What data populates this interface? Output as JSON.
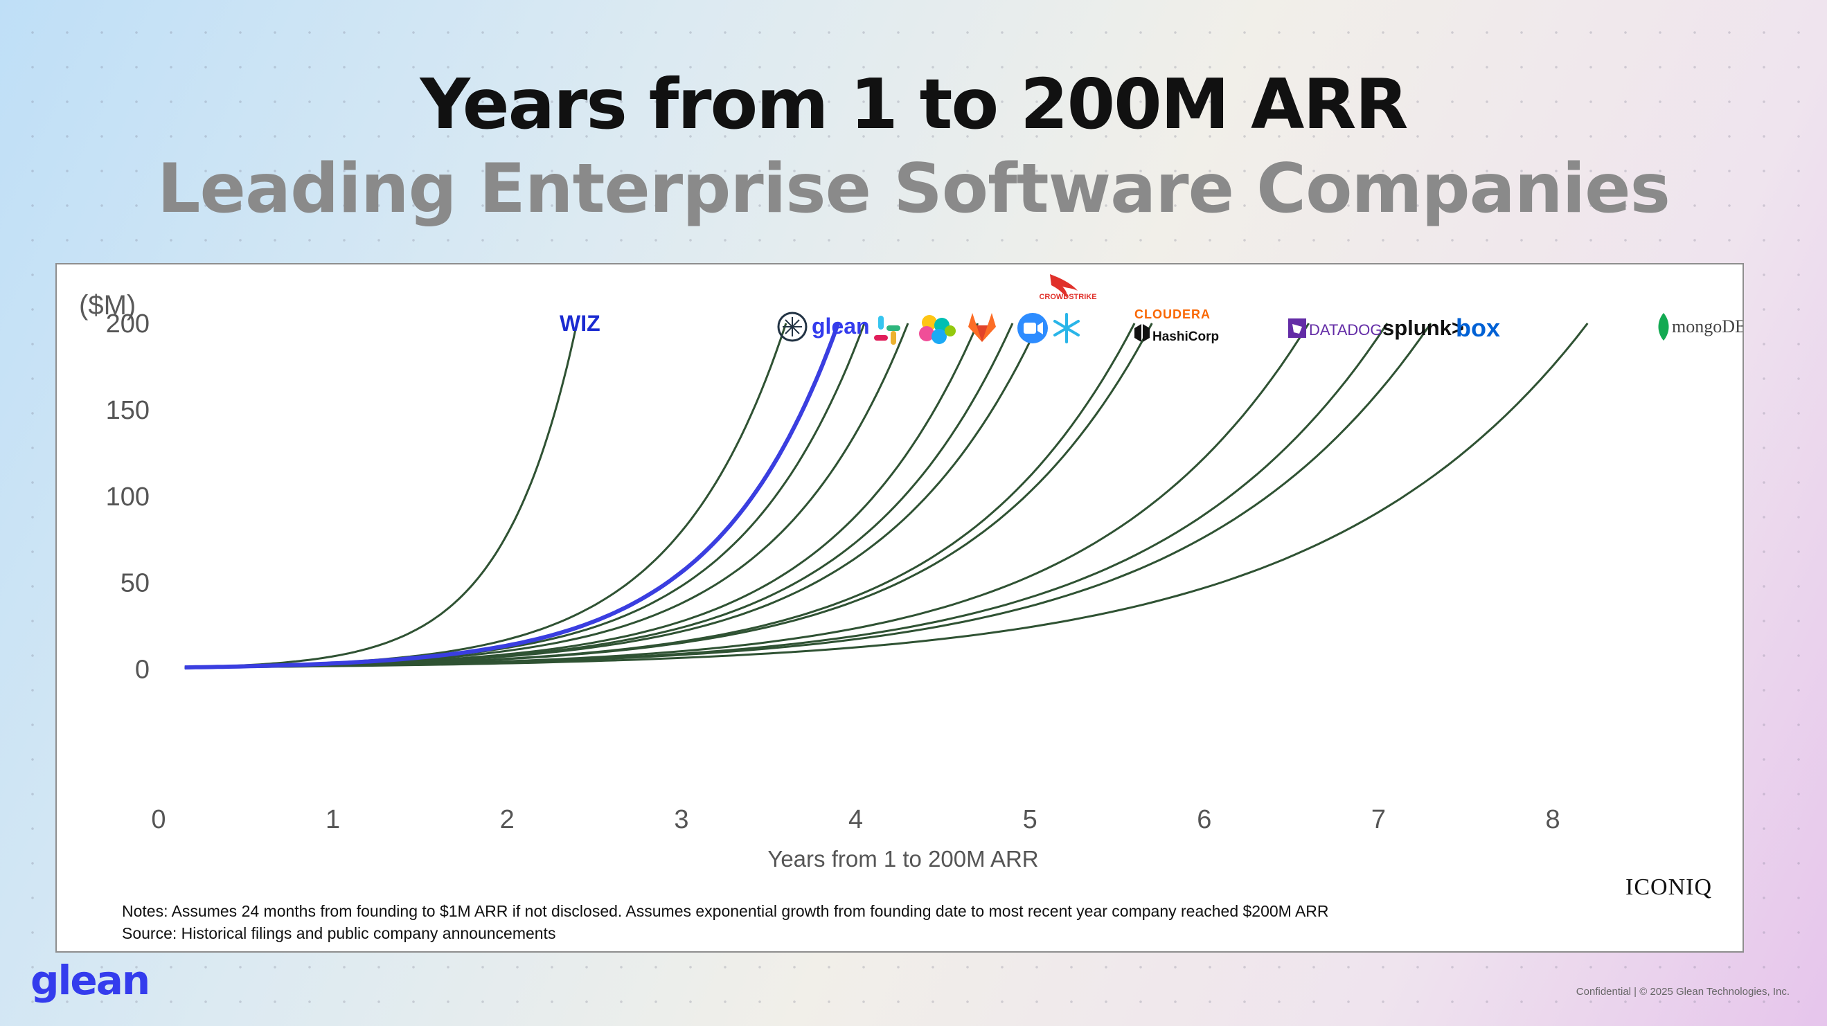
{
  "slide": {
    "title": "Years from 1 to 200M ARR",
    "subtitle": "Leading Enterprise Software Companies",
    "footer_logo": "glean",
    "footer_copyright": "Confidential | © 2025 Glean Technologies, Inc."
  },
  "chart_data": {
    "type": "line",
    "unit_label": "($M)",
    "xlabel": "Years from 1 to 200M ARR",
    "ylabel": "",
    "xlim": [
      0,
      8.6
    ],
    "ylim": [
      -35,
      210
    ],
    "xticks": [
      "0",
      "1",
      "2",
      "3",
      "4",
      "5",
      "6",
      "7",
      "8"
    ],
    "yticks": [
      "200",
      "150",
      "100",
      "50",
      "0"
    ],
    "grid": false,
    "start_year": 0.15,
    "series": [
      {
        "name": "WIZ",
        "end_year": 2.4,
        "highlight": false
      },
      {
        "name": "glean",
        "end_year": 3.9,
        "highlight": true
      },
      {
        "name": "",
        "end_year": 3.6,
        "highlight": false
      },
      {
        "name": "",
        "end_year": 4.05,
        "highlight": false
      },
      {
        "name": "",
        "end_year": 4.3,
        "highlight": false
      },
      {
        "name": "",
        "end_year": 4.7,
        "highlight": false
      },
      {
        "name": "",
        "end_year": 4.9,
        "highlight": false
      },
      {
        "name": "CROWDSTRIKE",
        "end_year": 5.05,
        "highlight": false
      },
      {
        "name": "CLOUDERA",
        "end_year": 5.6,
        "highlight": false
      },
      {
        "name": "HashiCorp",
        "end_year": 5.7,
        "highlight": false
      },
      {
        "name": "DATADOG",
        "end_year": 6.6,
        "highlight": false
      },
      {
        "name": "splunk>",
        "end_year": 7.05,
        "highlight": false
      },
      {
        "name": "box",
        "end_year": 7.3,
        "highlight": false
      },
      {
        "name": "mongoDB.",
        "end_year": 8.2,
        "highlight": false
      }
    ],
    "logos": [
      {
        "name": "WIZ"
      },
      {
        "name": "glean"
      },
      {
        "name": "slack-icon"
      },
      {
        "name": "elastic-icon"
      },
      {
        "name": "gitlab-icon"
      },
      {
        "name": "zoom-icon"
      },
      {
        "name": "snowflake-icon"
      },
      {
        "name": "CROWDSTRIKE"
      },
      {
        "name": "CLOUDERA"
      },
      {
        "name": "HashiCorp"
      },
      {
        "name": "DATADOG"
      },
      {
        "name": "splunk>"
      },
      {
        "name": "box"
      },
      {
        "name": "mongoDB."
      }
    ],
    "notes": "Notes: Assumes 24 months from founding to $1M ARR if not disclosed. Assumes exponential growth from founding date to most recent year company reached $200M ARR",
    "source": "Source: Historical filings and public company announcements",
    "watermark": "ICONIQ",
    "colors": {
      "line": "#2f5233",
      "highlight": "#3a3ee0"
    }
  }
}
